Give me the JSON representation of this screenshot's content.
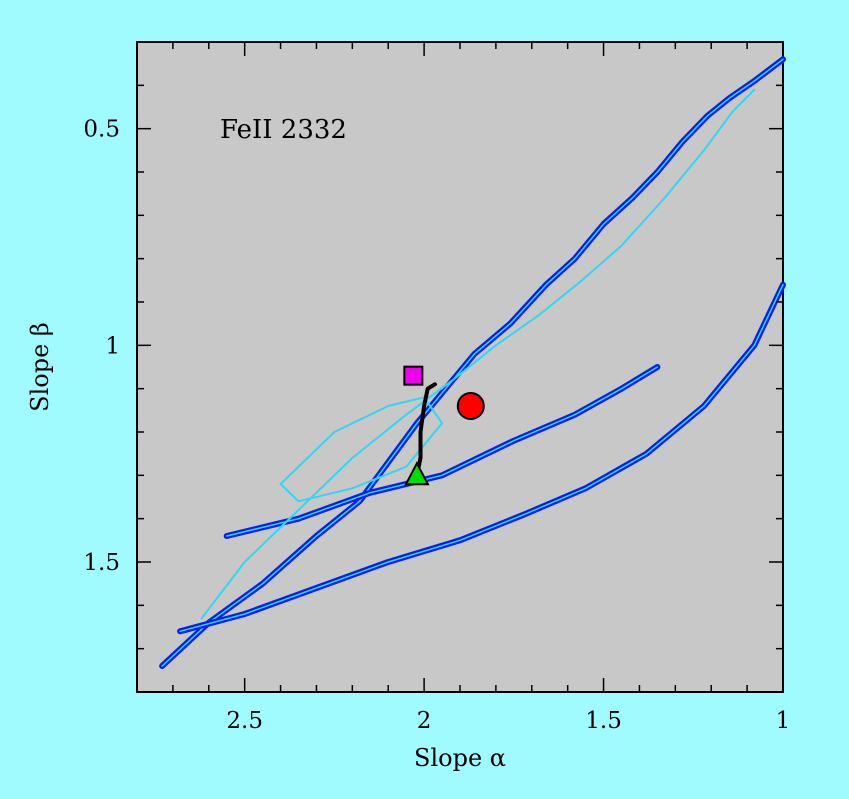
{
  "chart_data": {
    "type": "line",
    "title": "FeII 2332",
    "xlabel": "Slope α",
    "ylabel": "Slope β",
    "xlim": [
      2.8,
      1.0
    ],
    "ylim": [
      1.8,
      0.3
    ],
    "x_reversed": true,
    "y_reversed": true,
    "x_major_ticks": [
      2.5,
      2.0,
      1.5,
      1.0
    ],
    "x_tick_labels": [
      "2.5",
      "2",
      "1.5",
      "1"
    ],
    "y_major_ticks": [
      0.5,
      1.0,
      1.5
    ],
    "y_tick_labels": [
      "0.5",
      "1",
      "1.5"
    ],
    "grid": false,
    "background_color": "#c8c8c8",
    "page_color": "#9ffbfd",
    "series": [
      {
        "style": "thick-blue-outer",
        "color": "#0022ee",
        "x": [
          2.73,
          2.6,
          2.45,
          2.3,
          2.18,
          2.1,
          2.02,
          1.94,
          1.86,
          1.76,
          1.66,
          1.58,
          1.5,
          1.42,
          1.35,
          1.28,
          1.21,
          1.15,
          1.08,
          1.0
        ],
        "y": [
          1.74,
          1.64,
          1.55,
          1.44,
          1.36,
          1.27,
          1.18,
          1.1,
          1.02,
          0.95,
          0.86,
          0.8,
          0.72,
          0.66,
          0.6,
          0.53,
          0.47,
          0.43,
          0.39,
          0.34
        ]
      },
      {
        "style": "thick-blue-lower",
        "color": "#0022ee",
        "x": [
          2.68,
          2.5,
          2.3,
          2.1,
          1.9,
          1.72,
          1.55,
          1.38,
          1.22,
          1.08,
          1.0
        ],
        "y": [
          1.66,
          1.62,
          1.56,
          1.5,
          1.45,
          1.39,
          1.33,
          1.25,
          1.14,
          1.0,
          0.86
        ]
      },
      {
        "style": "thick-blue-inner-arm",
        "color": "#0022ee",
        "x": [
          2.55,
          2.35,
          2.15,
          1.95,
          1.75,
          1.58,
          1.45,
          1.35
        ],
        "y": [
          1.44,
          1.4,
          1.34,
          1.3,
          1.22,
          1.16,
          1.1,
          1.05
        ]
      },
      {
        "style": "thin-cyan-inner",
        "color": "#34d5f2",
        "x": [
          2.62,
          2.5,
          2.35,
          2.2,
          2.05,
          1.92,
          1.8,
          1.68,
          1.56,
          1.45,
          1.33,
          1.22,
          1.14,
          1.08
        ],
        "y": [
          1.63,
          1.5,
          1.38,
          1.26,
          1.16,
          1.08,
          1.0,
          0.93,
          0.85,
          0.77,
          0.66,
          0.55,
          0.46,
          0.41
        ]
      },
      {
        "style": "thin-cyan-loop",
        "color": "#34d5f2",
        "x": [
          2.4,
          2.25,
          2.1,
          2.0,
          1.95,
          2.05,
          2.2,
          2.35,
          2.4
        ],
        "y": [
          1.32,
          1.2,
          1.14,
          1.12,
          1.18,
          1.28,
          1.33,
          1.36,
          1.32
        ]
      },
      {
        "style": "black-track",
        "color": "#000000",
        "x": [
          2.02,
          2.01,
          2.01,
          2.0,
          1.99,
          1.97
        ],
        "y": [
          1.3,
          1.26,
          1.2,
          1.14,
          1.1,
          1.09
        ]
      }
    ],
    "markers": [
      {
        "shape": "square",
        "color": "#ee00ee",
        "x": 2.03,
        "y": 1.07
      },
      {
        "shape": "circle",
        "color": "#ff0000",
        "x": 1.87,
        "y": 1.14
      },
      {
        "shape": "triangle",
        "color": "#00dd00",
        "x": 2.02,
        "y": 1.3
      }
    ]
  }
}
